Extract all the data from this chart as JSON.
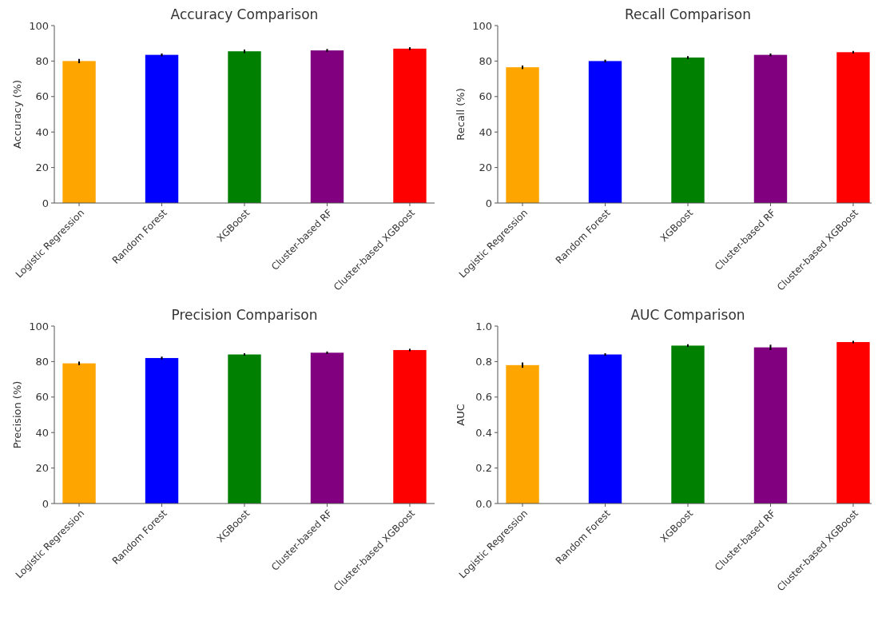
{
  "chart_data": [
    {
      "type": "bar",
      "title": "Accuracy Comparison",
      "ylabel": "Accuracy (%)",
      "categories": [
        "Logistic Regression",
        "Random Forest",
        "XGBoost",
        "Cluster-based RF",
        "Cluster-based XGBoost"
      ],
      "values": [
        80,
        83.5,
        85.5,
        86,
        87
      ],
      "errors": [
        1.2,
        0.8,
        1,
        0.8,
        0.8
      ],
      "colors": [
        "#ffa500",
        "#0000ff",
        "#008000",
        "#800080",
        "#ff0000"
      ],
      "ylim": [
        0,
        100
      ],
      "yticks": [
        0,
        20,
        40,
        60,
        80,
        100
      ],
      "grid": false
    },
    {
      "type": "bar",
      "title": "Recall Comparison",
      "ylabel": "Recall (%)",
      "categories": [
        "Logistic Regression",
        "Random Forest",
        "XGBoost",
        "Cluster-based RF",
        "Cluster-based XGBoost"
      ],
      "values": [
        76.5,
        80,
        82,
        83.5,
        85
      ],
      "errors": [
        1,
        0.8,
        0.8,
        0.8,
        0.7
      ],
      "colors": [
        "#ffa500",
        "#0000ff",
        "#008000",
        "#800080",
        "#ff0000"
      ],
      "ylim": [
        0,
        100
      ],
      "yticks": [
        0,
        20,
        40,
        60,
        80,
        100
      ],
      "grid": false
    },
    {
      "type": "bar",
      "title": "Precision Comparison",
      "ylabel": "Precision (%)",
      "categories": [
        "Logistic Regression",
        "Random Forest",
        "XGBoost",
        "Cluster-based RF",
        "Cluster-based XGBoost"
      ],
      "values": [
        79,
        82,
        84,
        85,
        86.5
      ],
      "errors": [
        1,
        0.8,
        0.7,
        0.7,
        0.7
      ],
      "colors": [
        "#ffa500",
        "#0000ff",
        "#008000",
        "#800080",
        "#ff0000"
      ],
      "ylim": [
        0,
        100
      ],
      "yticks": [
        0,
        20,
        40,
        60,
        80,
        100
      ],
      "grid": false
    },
    {
      "type": "bar",
      "title": "AUC Comparison",
      "ylabel": "AUC",
      "categories": [
        "Logistic Regression",
        "Random Forest",
        "XGBoost",
        "Cluster-based RF",
        "Cluster-based XGBoost"
      ],
      "values": [
        0.78,
        0.84,
        0.89,
        0.88,
        0.91
      ],
      "errors": [
        0.015,
        0.007,
        0.007,
        0.015,
        0.007
      ],
      "colors": [
        "#ffa500",
        "#0000ff",
        "#008000",
        "#800080",
        "#ff0000"
      ],
      "ylim": [
        0,
        1
      ],
      "yticks": [
        {
          "value": 0,
          "label": "0.0"
        },
        {
          "value": 0.2,
          "label": "0.2"
        },
        {
          "value": 0.4,
          "label": "0.4"
        },
        {
          "value": 0.6,
          "label": "0.6"
        },
        {
          "value": 0.8,
          "label": "0.8"
        },
        {
          "value": 1,
          "label": "1.0"
        }
      ],
      "grid": false
    }
  ]
}
